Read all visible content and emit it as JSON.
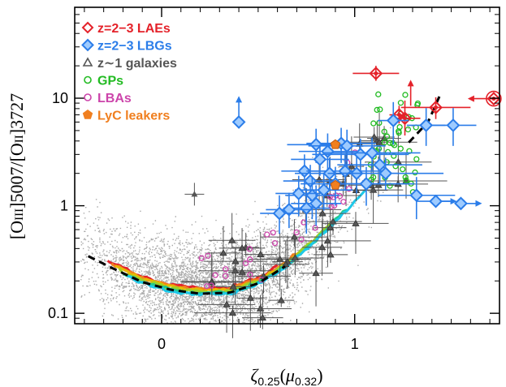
{
  "chart_data": {
    "type": "scatter",
    "title": "",
    "xlabel_parts": {
      "zeta": "ζ",
      "zeta_sub": "0.25",
      "open": "(",
      "mu": "μ",
      "mu_sub": "0.32",
      "close": ")"
    },
    "ylabel_parts": {
      "open": "[O",
      "ion1": "III",
      "mid": "]5007/[O",
      "ion2": "II",
      "close": "]3727"
    },
    "xlim": [
      -0.45,
      1.75
    ],
    "ylim_log": [
      0.08,
      70
    ],
    "x_ticks": [
      {
        "value": 0,
        "label": "0"
      },
      {
        "value": 1,
        "label": "1"
      }
    ],
    "y_ticks": [
      {
        "value": 0.1,
        "label": "0.1"
      },
      {
        "value": 1,
        "label": "1"
      },
      {
        "value": 10,
        "label": "10"
      }
    ],
    "legend": [
      {
        "label": "z=2−3 LAEs",
        "color": "#e4222a",
        "marker": "diamond-open"
      },
      {
        "label": "z=2−3 LBGs",
        "color": "#2b7de9",
        "marker": "diamond-filled"
      },
      {
        "label": "z∼1 galaxies",
        "color": "#555555",
        "marker": "triangle-open"
      },
      {
        "label": "GPs",
        "color": "#22bb22",
        "marker": "circle-open"
      },
      {
        "label": "LBAs",
        "color": "#cc44aa",
        "marker": "circle-open"
      },
      {
        "label": "LyC leakers",
        "color": "#f07f1f",
        "marker": "pentagon-filled"
      }
    ],
    "series": [
      {
        "name": "z=2−3 LAEs",
        "color": "#e4222a",
        "points": [
          {
            "x": 1.11,
            "y": 17.0,
            "xerr": 0.12,
            "yerr_up": 3.0,
            "yerr_dn": 2.5
          },
          {
            "x": 1.72,
            "y": 9.9,
            "xerr": 0.03,
            "arrow": "left"
          },
          {
            "x": 1.42,
            "y": 8.2,
            "xerr": 0.18,
            "yerr_up": 2.0,
            "yerr_dn": 1.8
          },
          {
            "x": 1.26,
            "y": 6.5,
            "xerr": 0.08,
            "yerr_up": 3.0,
            "yerr_dn": 2.0
          },
          {
            "x": 1.23,
            "y": 7.0,
            "xerr": 0.05,
            "yerr_up": 1.5,
            "yerr_dn": 1.2
          },
          {
            "x": 1.29,
            "y": 8.5,
            "arrow": "up"
          }
        ]
      },
      {
        "name": "z=2−3 LBGs",
        "color": "#2b7de9",
        "points": [
          {
            "x": 0.4,
            "y": 6.0,
            "arrow": "up"
          },
          {
            "x": 1.51,
            "y": 5.6,
            "xerr": 0.12,
            "yerr_up": 2.5,
            "yerr_dn": 2.0
          },
          {
            "x": 1.37,
            "y": 5.6,
            "xerr": 0.1,
            "yerr_up": 2.5,
            "yerr_dn": 2.0
          },
          {
            "x": 1.2,
            "y": 6.2,
            "xerr": 0.08,
            "yerr_up": 3.0,
            "yerr_dn": 2.5
          },
          {
            "x": 0.93,
            "y": 3.8,
            "xerr": 0.18,
            "yerr_up": 1.5,
            "yerr_dn": 1.3
          },
          {
            "x": 0.8,
            "y": 3.7,
            "xerr": 0.15,
            "yerr_up": 1.5,
            "yerr_dn": 1.2
          },
          {
            "x": 0.86,
            "y": 3.2,
            "xerr": 0.15,
            "yerr_up": 1.5,
            "yerr_dn": 1.2
          },
          {
            "x": 0.96,
            "y": 3.6,
            "xerr": 0.2,
            "yerr_up": 1.5,
            "yerr_dn": 1.3
          },
          {
            "x": 1.03,
            "y": 3.0,
            "xerr": 0.25,
            "yerr_up": 1.2,
            "yerr_dn": 1.0
          },
          {
            "x": 0.82,
            "y": 2.7,
            "xerr": 0.15,
            "yerr_up": 1.0,
            "yerr_dn": 0.8
          },
          {
            "x": 1.09,
            "y": 3.1,
            "xerr": 0.25,
            "yerr_up": 1.2,
            "yerr_dn": 1.0
          },
          {
            "x": 1.13,
            "y": 2.4,
            "xerr": 0.22,
            "yerr_up": 1.0,
            "yerr_dn": 0.8
          },
          {
            "x": 0.74,
            "y": 2.1,
            "xerr": 0.12,
            "yerr_up": 0.9,
            "yerr_dn": 0.7
          },
          {
            "x": 0.95,
            "y": 2.1,
            "xerr": 0.2,
            "yerr_up": 0.9,
            "yerr_dn": 0.7
          },
          {
            "x": 1.01,
            "y": 2.0,
            "xerr": 0.22,
            "yerr_up": 0.9,
            "yerr_dn": 0.7
          },
          {
            "x": 0.87,
            "y": 2.0,
            "xerr": 0.18,
            "yerr_up": 0.8,
            "yerr_dn": 0.6
          },
          {
            "x": 1.16,
            "y": 2.0,
            "xerr": 0.3,
            "yerr_up": 0.8,
            "yerr_dn": 0.6
          },
          {
            "x": 0.77,
            "y": 1.7,
            "xerr": 0.14,
            "yerr_up": 0.7,
            "yerr_dn": 0.6
          },
          {
            "x": 0.9,
            "y": 1.6,
            "xerr": 0.18,
            "yerr_up": 0.7,
            "yerr_dn": 0.6
          },
          {
            "x": 1.06,
            "y": 1.6,
            "xerr": 0.25,
            "yerr_up": 0.7,
            "yerr_dn": 0.6
          },
          {
            "x": 0.84,
            "y": 1.4,
            "xerr": 0.15,
            "yerr_up": 0.6,
            "yerr_dn": 0.5
          },
          {
            "x": 0.78,
            "y": 1.25,
            "xerr": 0.14,
            "yerr_up": 0.6,
            "yerr_dn": 0.5
          },
          {
            "x": 0.71,
            "y": 1.3,
            "xerr": 0.12,
            "yerr_up": 0.6,
            "yerr_dn": 0.5
          },
          {
            "x": 0.8,
            "y": 1.05,
            "xerr": 0.13,
            "yerr_up": 0.5,
            "yerr_dn": 0.4
          },
          {
            "x": 0.75,
            "y": 0.95,
            "xerr": 0.12,
            "yerr_up": 0.5,
            "yerr_dn": 0.4
          },
          {
            "x": 0.66,
            "y": 0.92,
            "xerr": 0.12,
            "yerr_up": 0.4,
            "yerr_dn": 0.3
          },
          {
            "x": 0.61,
            "y": 0.85,
            "xerr": 0.1,
            "yerr_up": 0.4,
            "yerr_dn": 0.3
          },
          {
            "x": 1.32,
            "y": 1.25,
            "xerr": 0.2,
            "yerr_up": 0.6,
            "yerr_dn": 0.5
          },
          {
            "x": 1.42,
            "y": 1.1,
            "xerr": 0.1,
            "arrow": "right"
          },
          {
            "x": 1.55,
            "y": 1.05,
            "arrow": "right"
          }
        ]
      },
      {
        "name": "LyC leakers",
        "color": "#f07f1f",
        "points": [
          {
            "x": 0.9,
            "y": 3.7
          },
          {
            "x": 0.9,
            "y": 1.55
          }
        ]
      }
    ],
    "model_curve": {
      "label": "dashed",
      "points": [
        [
          -0.38,
          0.34
        ],
        [
          -0.25,
          0.26
        ],
        [
          -0.1,
          0.195
        ],
        [
          0.05,
          0.165
        ],
        [
          0.2,
          0.152
        ],
        [
          0.35,
          0.155
        ],
        [
          0.5,
          0.19
        ],
        [
          0.65,
          0.28
        ],
        [
          0.8,
          0.48
        ],
        [
          0.95,
          0.9
        ],
        [
          1.1,
          1.75
        ],
        [
          1.25,
          3.4
        ],
        [
          1.38,
          6.0
        ],
        [
          1.44,
          10.5
        ]
      ]
    },
    "band_curves": {
      "colors": [
        "#e4222a",
        "#f07f1f",
        "#e8b800",
        "#9ad12a",
        "#22c98a",
        "#1ec8e8"
      ]
    }
  }
}
